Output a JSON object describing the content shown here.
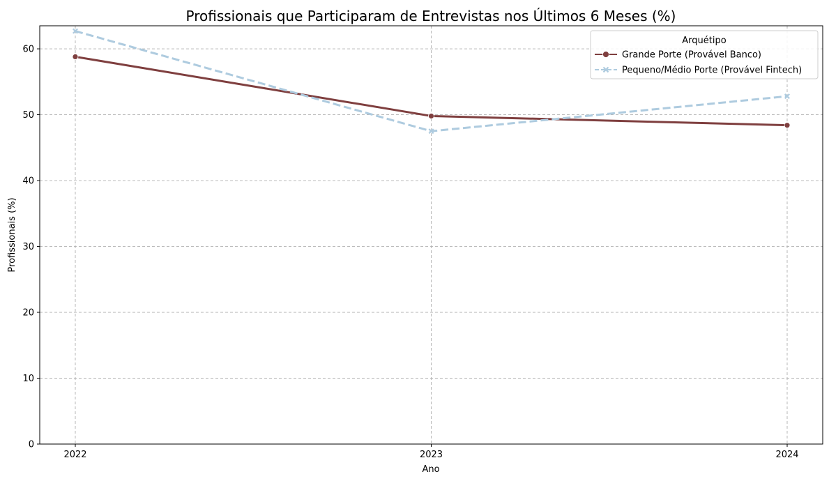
{
  "chart_data": {
    "type": "line",
    "title": "Profissionais que Participaram de Entrevistas nos Últimos 6 Meses (%)",
    "xlabel": "Ano",
    "ylabel": "Profissionais (%)",
    "x": [
      "2022",
      "2023",
      "2024"
    ],
    "ylim": [
      0,
      63.5
    ],
    "yticks": [
      0,
      10,
      20,
      30,
      40,
      50,
      60
    ],
    "grid": true,
    "legend": {
      "title": "Arquétipo",
      "placement": "top-right"
    },
    "series": [
      {
        "name": "Grande Porte (Provável Banco)",
        "values": [
          58.8,
          49.8,
          48.4
        ],
        "color": "#7f3f3f",
        "marker": "circle",
        "dash": "solid"
      },
      {
        "name": "Pequeno/Médio Porte (Provável Fintech)",
        "values": [
          62.7,
          47.5,
          52.8
        ],
        "color": "#aecbdf",
        "marker": "x",
        "dash": "dashed"
      }
    ]
  }
}
